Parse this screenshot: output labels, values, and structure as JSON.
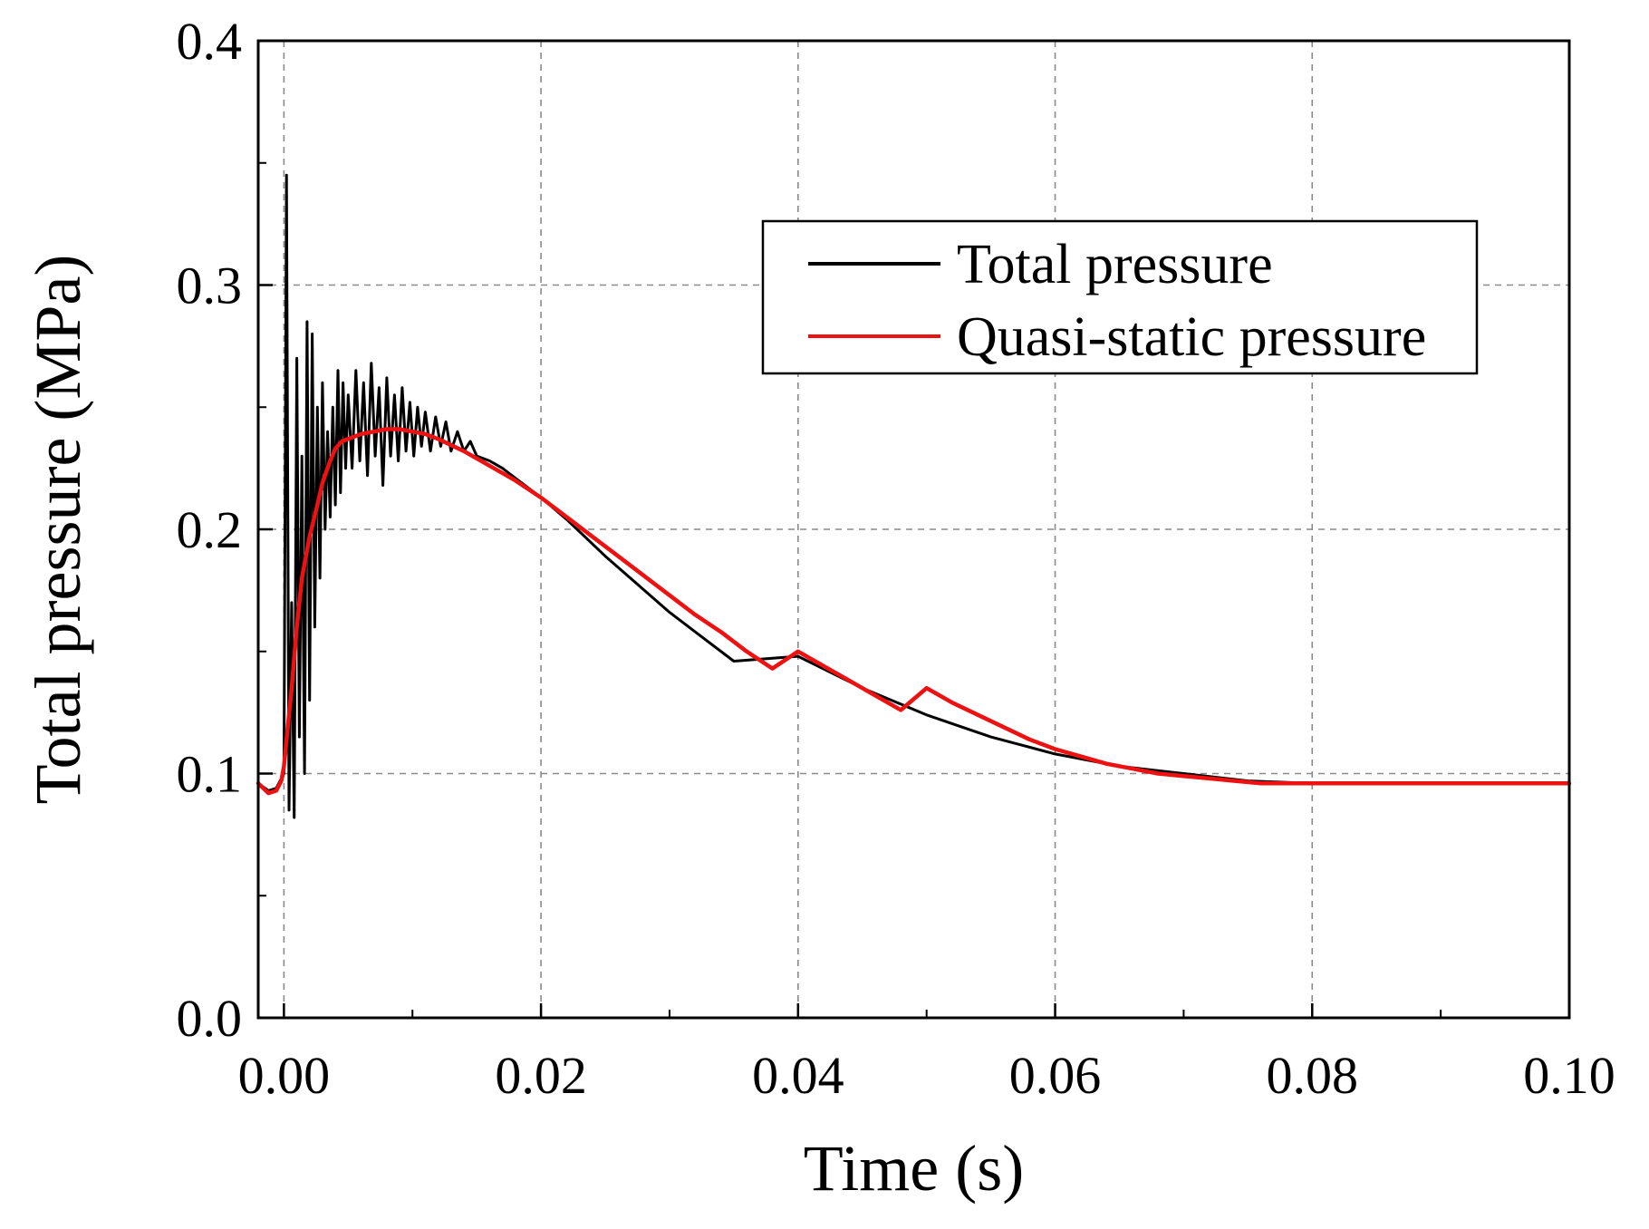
{
  "chart_data": {
    "type": "line",
    "title": "",
    "xlabel": "Time (s)",
    "ylabel": "Total pressure (MPa)",
    "xlim": [
      -0.002,
      0.1
    ],
    "ylim": [
      0.0,
      0.4
    ],
    "x_ticks": [
      0.0,
      0.02,
      0.04,
      0.06,
      0.08,
      0.1
    ],
    "x_tick_labels": [
      "0.00",
      "0.02",
      "0.04",
      "0.06",
      "0.08",
      "0.10"
    ],
    "y_ticks": [
      0.0,
      0.1,
      0.2,
      0.3,
      0.4
    ],
    "y_tick_labels": [
      "0.0",
      "0.1",
      "0.2",
      "0.3",
      "0.4"
    ],
    "grid": true,
    "legend_position": "top-right",
    "series": [
      {
        "name": "Total pressure",
        "color": "#000000",
        "x": [
          -0.002,
          -0.0012,
          -0.0006,
          0.0,
          0.0002,
          0.0004,
          0.0006,
          0.0008,
          0.001,
          0.0012,
          0.0014,
          0.0016,
          0.0018,
          0.002,
          0.0022,
          0.0024,
          0.0026,
          0.0028,
          0.003,
          0.0032,
          0.0034,
          0.0036,
          0.0038,
          0.004,
          0.0042,
          0.0044,
          0.0046,
          0.0048,
          0.005,
          0.0053,
          0.0056,
          0.0059,
          0.0062,
          0.0065,
          0.0068,
          0.0071,
          0.0074,
          0.0077,
          0.008,
          0.0083,
          0.0086,
          0.0089,
          0.0092,
          0.0095,
          0.0098,
          0.0101,
          0.0104,
          0.0107,
          0.011,
          0.0114,
          0.0118,
          0.0122,
          0.0126,
          0.013,
          0.0135,
          0.014,
          0.0145,
          0.015,
          0.016,
          0.017,
          0.018,
          0.02,
          0.022,
          0.025,
          0.03,
          0.035,
          0.04,
          0.045,
          0.05,
          0.055,
          0.06,
          0.065,
          0.07,
          0.075,
          0.08,
          0.085,
          0.09,
          0.095,
          0.1
        ],
        "y": [
          0.096,
          0.093,
          0.094,
          0.1,
          0.345,
          0.085,
          0.17,
          0.082,
          0.27,
          0.115,
          0.23,
          0.1,
          0.285,
          0.13,
          0.28,
          0.16,
          0.25,
          0.18,
          0.26,
          0.2,
          0.24,
          0.205,
          0.25,
          0.21,
          0.265,
          0.215,
          0.26,
          0.225,
          0.255,
          0.225,
          0.265,
          0.228,
          0.26,
          0.222,
          0.268,
          0.23,
          0.258,
          0.218,
          0.262,
          0.23,
          0.255,
          0.228,
          0.258,
          0.232,
          0.252,
          0.23,
          0.25,
          0.234,
          0.248,
          0.232,
          0.246,
          0.234,
          0.244,
          0.232,
          0.24,
          0.232,
          0.236,
          0.23,
          0.228,
          0.225,
          0.221,
          0.213,
          0.204,
          0.189,
          0.166,
          0.146,
          0.148,
          0.135,
          0.124,
          0.115,
          0.108,
          0.103,
          0.1,
          0.097,
          0.096,
          0.096,
          0.096,
          0.096,
          0.096
        ]
      },
      {
        "name": "Quasi-static pressure",
        "color": "#ee1111",
        "x": [
          -0.002,
          -0.0012,
          -0.0006,
          -0.0002,
          0.0,
          0.0006,
          0.001,
          0.0014,
          0.002,
          0.0026,
          0.003,
          0.0036,
          0.004,
          0.0045,
          0.005,
          0.006,
          0.007,
          0.008,
          0.009,
          0.01,
          0.011,
          0.012,
          0.014,
          0.016,
          0.018,
          0.02,
          0.022,
          0.024,
          0.026,
          0.028,
          0.03,
          0.032,
          0.034,
          0.036,
          0.038,
          0.04,
          0.042,
          0.044,
          0.046,
          0.048,
          0.05,
          0.052,
          0.054,
          0.056,
          0.058,
          0.06,
          0.062,
          0.064,
          0.066,
          0.068,
          0.07,
          0.072,
          0.074,
          0.076,
          0.078,
          0.08,
          0.085,
          0.09,
          0.095,
          0.1
        ],
        "y": [
          0.096,
          0.092,
          0.093,
          0.097,
          0.103,
          0.135,
          0.16,
          0.18,
          0.197,
          0.21,
          0.219,
          0.228,
          0.233,
          0.236,
          0.237,
          0.239,
          0.24,
          0.241,
          0.241,
          0.24,
          0.239,
          0.237,
          0.232,
          0.226,
          0.22,
          0.213,
          0.205,
          0.197,
          0.189,
          0.181,
          0.173,
          0.165,
          0.158,
          0.15,
          0.143,
          0.15,
          0.144,
          0.138,
          0.132,
          0.126,
          0.135,
          0.129,
          0.124,
          0.119,
          0.114,
          0.11,
          0.107,
          0.104,
          0.102,
          0.1,
          0.099,
          0.098,
          0.097,
          0.096,
          0.096,
          0.096,
          0.096,
          0.096,
          0.096,
          0.096
        ]
      }
    ]
  }
}
